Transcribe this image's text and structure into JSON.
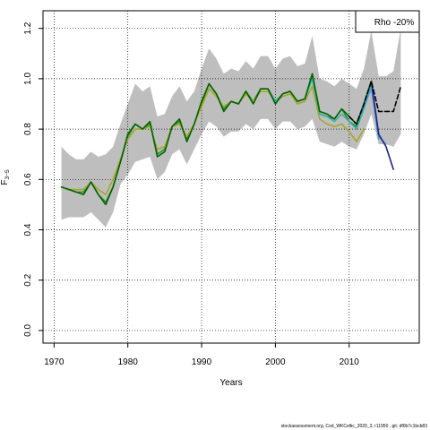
{
  "chart_data": {
    "type": "line",
    "xlabel": "Years",
    "ylabel": "F",
    "ylabel_subscript": "3−5",
    "legend": {
      "text": "Rho -20%",
      "position": "top-right"
    },
    "xlim": [
      1968.5,
      2019.5
    ],
    "ylim": [
      -0.05,
      1.27
    ],
    "x_ticks": [
      1970,
      1980,
      1990,
      2000,
      2010
    ],
    "y_ticks": [
      0.0,
      0.2,
      0.4,
      0.6,
      0.8,
      1.0,
      1.2
    ],
    "grid": true,
    "band": {
      "color": "#bebebe",
      "x": [
        1971,
        1972,
        1973,
        1974,
        1975,
        1976,
        1977,
        1978,
        1979,
        1980,
        1981,
        1982,
        1983,
        1984,
        1985,
        1986,
        1987,
        1988,
        1989,
        1990,
        1991,
        1992,
        1993,
        1994,
        1995,
        1996,
        1997,
        1998,
        1999,
        2000,
        2001,
        2002,
        2003,
        2004,
        2005,
        2006,
        2007,
        2008,
        2009,
        2010,
        2011,
        2012,
        2013,
        2014,
        2015,
        2016,
        2017
      ],
      "upper": [
        0.73,
        0.7,
        0.68,
        0.68,
        0.71,
        0.69,
        0.7,
        0.73,
        0.82,
        0.9,
        0.98,
        0.95,
        0.97,
        0.85,
        0.86,
        0.93,
        0.97,
        0.91,
        0.95,
        1.04,
        1.12,
        1.08,
        1.02,
        1.04,
        1.03,
        1.07,
        1.04,
        1.09,
        1.09,
        1.04,
        1.08,
        1.09,
        1.05,
        1.06,
        1.17,
        1.0,
        0.99,
        0.97,
        1.0,
        0.98,
        0.96,
        1.04,
        1.19,
        1.01,
        1.01,
        1.03,
        1.2
      ],
      "lower": [
        0.44,
        0.45,
        0.45,
        0.45,
        0.47,
        0.44,
        0.41,
        0.47,
        0.58,
        0.62,
        0.67,
        0.68,
        0.69,
        0.6,
        0.63,
        0.7,
        0.72,
        0.66,
        0.72,
        0.78,
        0.83,
        0.81,
        0.77,
        0.79,
        0.79,
        0.82,
        0.8,
        0.84,
        0.84,
        0.8,
        0.83,
        0.83,
        0.8,
        0.81,
        0.84,
        0.75,
        0.74,
        0.73,
        0.75,
        0.73,
        0.72,
        0.78,
        0.86,
        0.74,
        0.74,
        0.73,
        0.78
      ]
    },
    "series": [
      {
        "color": "#2d8f2d",
        "width": 1.6,
        "x": [
          1971,
          1972,
          1973,
          1974,
          1975,
          1976,
          1977,
          1978,
          1979,
          1980,
          1981,
          1982,
          1983,
          1984,
          1985,
          1986,
          1987,
          1988,
          1989,
          1990,
          1991,
          1992,
          1993,
          1994,
          1995,
          1996,
          1997,
          1998,
          1999,
          2000,
          2001,
          2002,
          2003,
          2004,
          2005,
          2006,
          2007,
          2008,
          2009,
          2010,
          2011,
          2012,
          2013
        ],
        "values": [
          0.57,
          0.56,
          0.55,
          0.55,
          0.59,
          0.54,
          0.51,
          0.57,
          0.67,
          0.77,
          0.82,
          0.8,
          0.82,
          0.7,
          0.72,
          0.81,
          0.83,
          0.76,
          0.82,
          0.9,
          0.98,
          0.94,
          0.88,
          0.91,
          0.9,
          0.95,
          0.91,
          0.96,
          0.96,
          0.91,
          0.94,
          0.95,
          0.91,
          0.92,
          1.01,
          0.86,
          0.85,
          0.84,
          0.88,
          0.83,
          0.81,
          0.9,
          0.99
        ]
      },
      {
        "color": "#a6a62a",
        "width": 1.6,
        "x": [
          1971,
          1972,
          1973,
          1974,
          1975,
          1976,
          1977,
          1978,
          1979,
          1980,
          1981,
          1982,
          1983,
          1984,
          1985,
          1986,
          1987,
          1988,
          1989,
          1990,
          1991,
          1992,
          1993,
          1994,
          1995,
          1996,
          1997,
          1998,
          1999,
          2000,
          2001,
          2002,
          2003,
          2004,
          2005,
          2006,
          2007,
          2008,
          2009,
          2010,
          2011,
          2012
        ],
        "values": [
          0.57,
          0.56,
          0.56,
          0.56,
          0.59,
          0.56,
          0.54,
          0.6,
          0.68,
          0.76,
          0.8,
          0.8,
          0.81,
          0.72,
          0.73,
          0.81,
          0.82,
          0.77,
          0.82,
          0.89,
          0.96,
          0.93,
          0.89,
          0.91,
          0.9,
          0.94,
          0.91,
          0.95,
          0.95,
          0.91,
          0.93,
          0.94,
          0.9,
          0.91,
          0.97,
          0.84,
          0.82,
          0.81,
          0.82,
          0.79,
          0.75,
          0.8
        ]
      },
      {
        "color": "#2bb0b0",
        "width": 1.4,
        "x": [
          1999,
          2000,
          2001,
          2002,
          2003,
          2004,
          2005,
          2006,
          2007,
          2008,
          2009,
          2010,
          2011,
          2012,
          2013,
          2014
        ],
        "values": [
          0.96,
          0.91,
          0.94,
          0.95,
          0.91,
          0.92,
          1.0,
          0.86,
          0.85,
          0.83,
          0.86,
          0.83,
          0.8,
          0.88,
          0.97,
          0.76
        ]
      },
      {
        "color": "#4a9ae8",
        "width": 1.4,
        "x": [
          2011,
          2012,
          2013,
          2014,
          2015
        ],
        "values": [
          0.82,
          0.89,
          0.96,
          0.77,
          0.74
        ]
      },
      {
        "color": "#1f1f8c",
        "width": 1.6,
        "x": [
          2013,
          2014,
          2015,
          2016
        ],
        "values": [
          0.99,
          0.78,
          0.73,
          0.64
        ]
      },
      {
        "color": "#006400",
        "width": 1.6,
        "x": [
          1971,
          1972,
          1973,
          1974,
          1975,
          1976,
          1977,
          1978,
          1979,
          1980,
          1981,
          1982,
          1983,
          1984,
          1985,
          1986,
          1987,
          1988,
          1989,
          1990,
          1991,
          1992,
          1993,
          1994,
          1995,
          1996,
          1997,
          1998,
          1999,
          2000,
          2001,
          2002,
          2003,
          2004,
          2005,
          2006,
          2007,
          2008,
          2009,
          2010,
          2011,
          2012,
          2013
        ],
        "values": [
          0.57,
          0.56,
          0.55,
          0.54,
          0.59,
          0.54,
          0.5,
          0.57,
          0.67,
          0.78,
          0.82,
          0.8,
          0.83,
          0.69,
          0.71,
          0.81,
          0.84,
          0.75,
          0.82,
          0.91,
          0.98,
          0.94,
          0.87,
          0.91,
          0.9,
          0.95,
          0.9,
          0.96,
          0.96,
          0.9,
          0.94,
          0.95,
          0.91,
          0.92,
          1.02,
          0.87,
          0.86,
          0.84,
          0.88,
          0.85,
          0.82,
          0.9,
          0.99
        ]
      },
      {
        "color": "#000000",
        "width": 1.6,
        "dash": "5,3",
        "x": [
          2010,
          2011,
          2012,
          2013,
          2014,
          2015,
          2016,
          2017
        ],
        "values": [
          0.85,
          0.82,
          0.9,
          0.99,
          0.87,
          0.87,
          0.87,
          0.97
        ]
      }
    ]
  },
  "footer": "stockassessment.org,  Cod_WKCeltic_2020_3,  r11950 ,  git: df0b7c1bcb83"
}
